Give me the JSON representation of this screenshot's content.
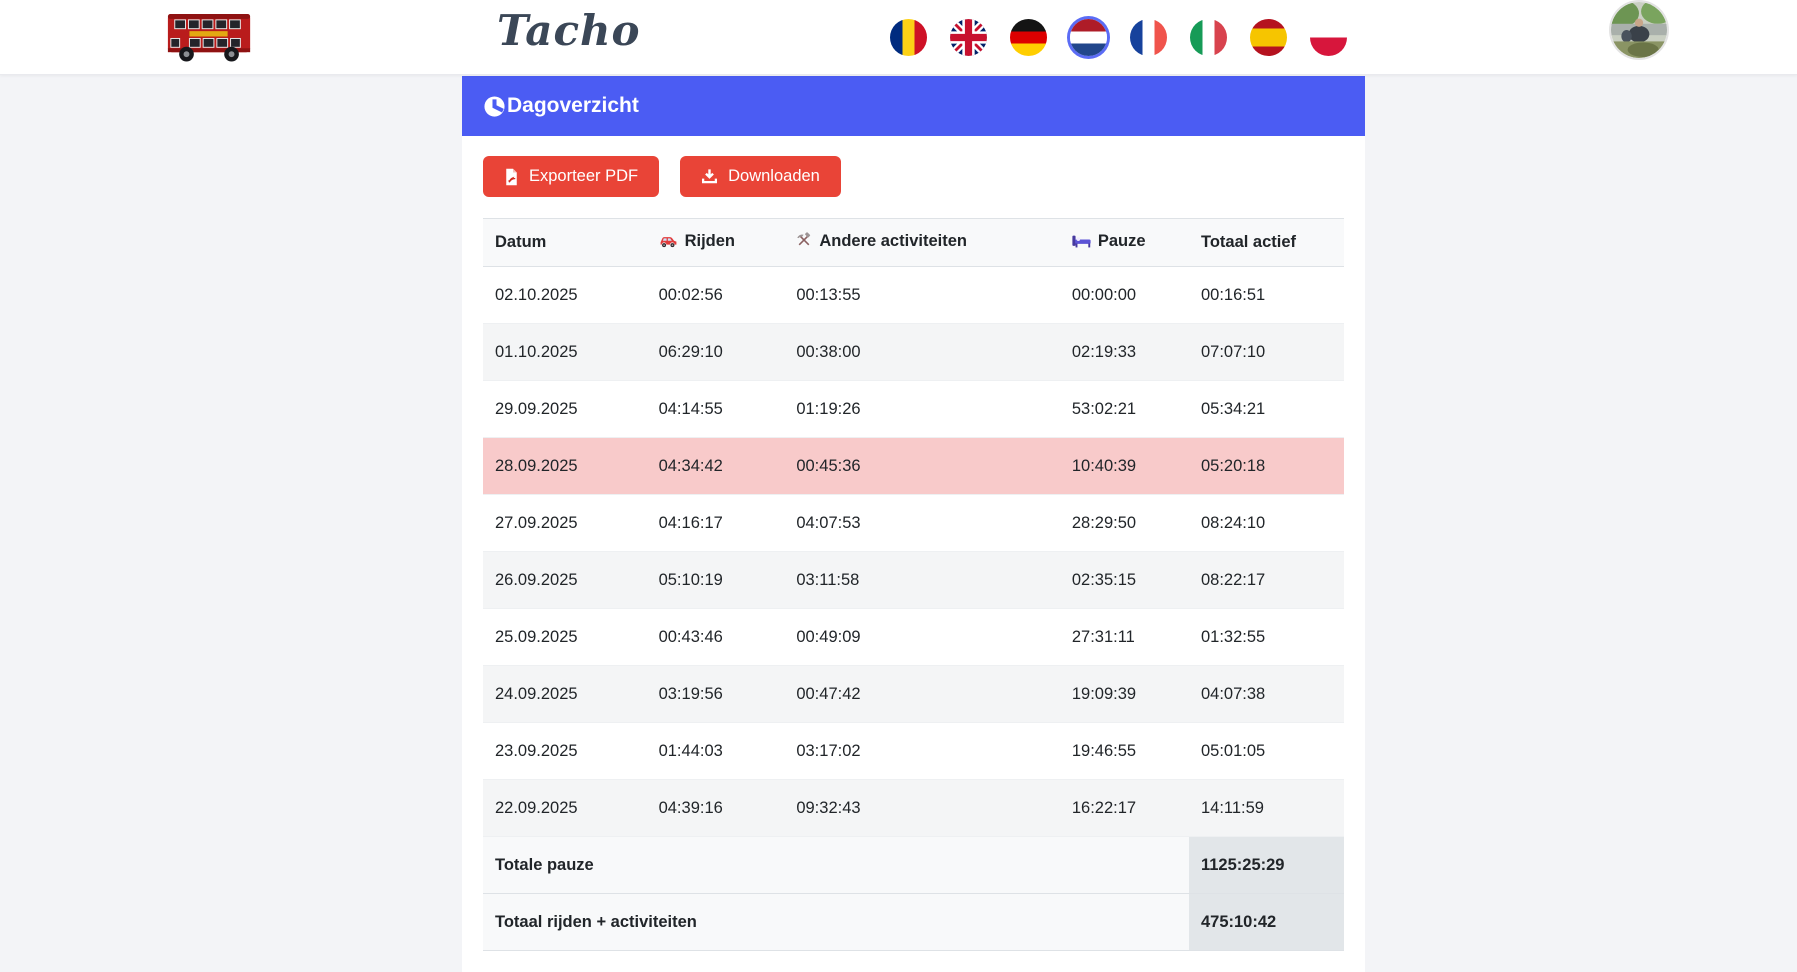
{
  "header": {
    "title": "Tacho",
    "logo": "red-double-decker-bus",
    "languages": [
      {
        "code": "ro",
        "name": "Romanian",
        "selected": false
      },
      {
        "code": "gb",
        "name": "English",
        "selected": false
      },
      {
        "code": "de",
        "name": "German",
        "selected": false
      },
      {
        "code": "nl",
        "name": "Dutch",
        "selected": true
      },
      {
        "code": "fr",
        "name": "French",
        "selected": false
      },
      {
        "code": "it",
        "name": "Italian",
        "selected": false
      },
      {
        "code": "es",
        "name": "Spanish",
        "selected": false
      },
      {
        "code": "pl",
        "name": "Polish",
        "selected": false
      }
    ],
    "avatar": "user-profile-photo"
  },
  "panel": {
    "title": "Dagoverzicht",
    "icon": "clock-icon",
    "accent_color": "#4b5cf3"
  },
  "toolbar": {
    "export_pdf_label": "Exporteer PDF",
    "download_label": "Downloaden",
    "button_color": "#e94437"
  },
  "table": {
    "columns": [
      {
        "key": "datum",
        "label": "Datum",
        "icon": null
      },
      {
        "key": "rijden",
        "label": "Rijden",
        "icon": "car-icon"
      },
      {
        "key": "andere",
        "label": "Andere activiteiten",
        "icon": "hammer-pick-icon"
      },
      {
        "key": "pauze",
        "label": "Pauze",
        "icon": "bed-icon"
      },
      {
        "key": "totaal",
        "label": "Totaal actief",
        "icon": null
      }
    ],
    "rows": [
      {
        "datum": "02.10.2025",
        "rijden": "00:02:56",
        "andere": "00:13:55",
        "pauze": "00:00:00",
        "totaal": "00:16:51",
        "highlight": false
      },
      {
        "datum": "01.10.2025",
        "rijden": "06:29:10",
        "andere": "00:38:00",
        "pauze": "02:19:33",
        "totaal": "07:07:10",
        "highlight": false
      },
      {
        "datum": "29.09.2025",
        "rijden": "04:14:55",
        "andere": "01:19:26",
        "pauze": "53:02:21",
        "totaal": "05:34:21",
        "highlight": false
      },
      {
        "datum": "28.09.2025",
        "rijden": "04:34:42",
        "andere": "00:45:36",
        "pauze": "10:40:39",
        "totaal": "05:20:18",
        "highlight": true
      },
      {
        "datum": "27.09.2025",
        "rijden": "04:16:17",
        "andere": "04:07:53",
        "pauze": "28:29:50",
        "totaal": "08:24:10",
        "highlight": false
      },
      {
        "datum": "26.09.2025",
        "rijden": "05:10:19",
        "andere": "03:11:58",
        "pauze": "02:35:15",
        "totaal": "08:22:17",
        "highlight": false
      },
      {
        "datum": "25.09.2025",
        "rijden": "00:43:46",
        "andere": "00:49:09",
        "pauze": "27:31:11",
        "totaal": "01:32:55",
        "highlight": false
      },
      {
        "datum": "24.09.2025",
        "rijden": "03:19:56",
        "andere": "00:47:42",
        "pauze": "19:09:39",
        "totaal": "04:07:38",
        "highlight": false
      },
      {
        "datum": "23.09.2025",
        "rijden": "01:44:03",
        "andere": "03:17:02",
        "pauze": "19:46:55",
        "totaal": "05:01:05",
        "highlight": false
      },
      {
        "datum": "22.09.2025",
        "rijden": "04:39:16",
        "andere": "09:32:43",
        "pauze": "16:22:17",
        "totaal": "14:11:59",
        "highlight": false
      }
    ],
    "footer": [
      {
        "label": "Totale pauze",
        "value": "1125:25:29"
      },
      {
        "label": "Totaal rijden + activiteiten",
        "value": "475:10:42"
      }
    ],
    "highlight_color": "#f8caca"
  }
}
